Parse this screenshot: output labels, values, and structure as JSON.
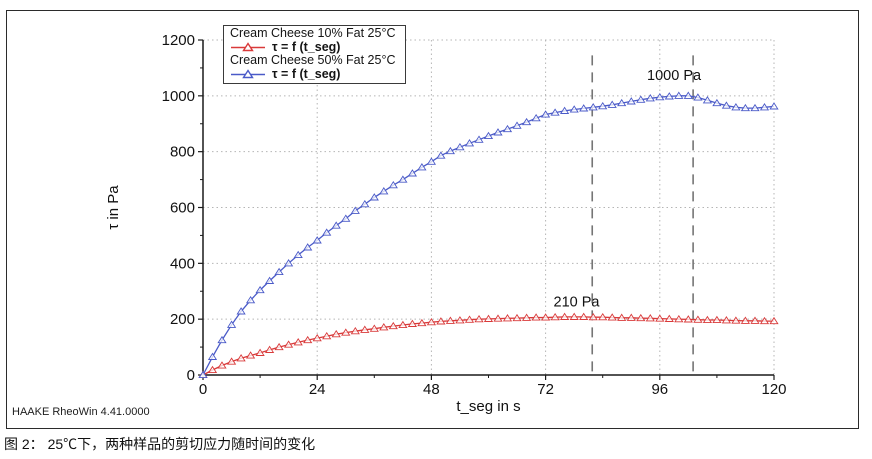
{
  "caption": "图 2：  25℃下，两种样品的剪切应力随时间的变化",
  "watermark": "HAAKE RheoWin 4.41.0000",
  "colors": {
    "series_red": "#d93a3a",
    "series_blue": "#4a5ac8",
    "grid": "#b5b5b5",
    "axis": "#1a1a1a",
    "dashed_line": "#757575",
    "text": "#111111"
  },
  "chart_data": {
    "type": "line",
    "title": "",
    "xlabel": "t_seg in s",
    "ylabel": "τ in Pa",
    "xlim": [
      0,
      120
    ],
    "ylim": [
      0,
      1200
    ],
    "xticks": [
      0,
      24,
      48,
      72,
      96,
      120
    ],
    "yticks": [
      0,
      200,
      400,
      600,
      800,
      1000,
      1200
    ],
    "x_minor_ticks": [
      12,
      36,
      60,
      84,
      108
    ],
    "y_minor_ticks": [
      100,
      300,
      500,
      700,
      900,
      1100
    ],
    "grid": "dotted",
    "legend_position": "top-left",
    "t_step": 2,
    "series": [
      {
        "name": "Cream Cheese 10% Fat 25°C",
        "formula": "τ = f (t_seg)",
        "color": "#d93a3a",
        "marker": "triangle-up",
        "values": [
          0,
          18,
          34,
          48,
          60,
          70,
          79,
          90,
          100,
          109,
          117,
          125,
          132,
          139,
          146,
          152,
          157,
          162,
          166,
          171,
          175,
          179,
          183,
          186,
          189,
          192,
          194,
          196,
          198,
          200,
          201,
          202,
          203,
          204,
          205,
          206,
          206,
          207,
          208,
          208,
          208,
          207,
          207,
          206,
          205,
          205,
          204,
          203,
          202,
          201,
          200,
          199,
          198,
          197,
          197,
          196,
          195,
          194,
          194,
          193,
          193
        ]
      },
      {
        "name": "Cream Cheese 50% Fat 25°C",
        "formula": "τ = f (t_seg)",
        "color": "#4a5ac8",
        "marker": "triangle-up",
        "values": [
          0,
          65,
          125,
          180,
          228,
          268,
          304,
          337,
          369,
          400,
          430,
          457,
          482,
          510,
          535,
          560,
          588,
          612,
          636,
          658,
          680,
          700,
          722,
          744,
          764,
          786,
          802,
          816,
          830,
          843,
          856,
          869,
          881,
          893,
          906,
          920,
          933,
          940,
          946,
          951,
          955,
          959,
          963,
          968,
          974,
          980,
          986,
          991,
          995,
          998,
          1000,
          1000,
          994,
          984,
          974,
          965,
          959,
          956,
          956,
          959,
          962
        ]
      }
    ],
    "dashed_lines": [
      {
        "x": 81.8,
        "y_from": 0,
        "y_to": 1145
      },
      {
        "x": 103.0,
        "y_from": 0,
        "y_to": 1145
      }
    ],
    "annotations": [
      {
        "text": "210 Pa",
        "x": 78.5,
        "y": 245
      },
      {
        "text": "1000 Pa",
        "x": 99.0,
        "y": 1057
      }
    ]
  }
}
